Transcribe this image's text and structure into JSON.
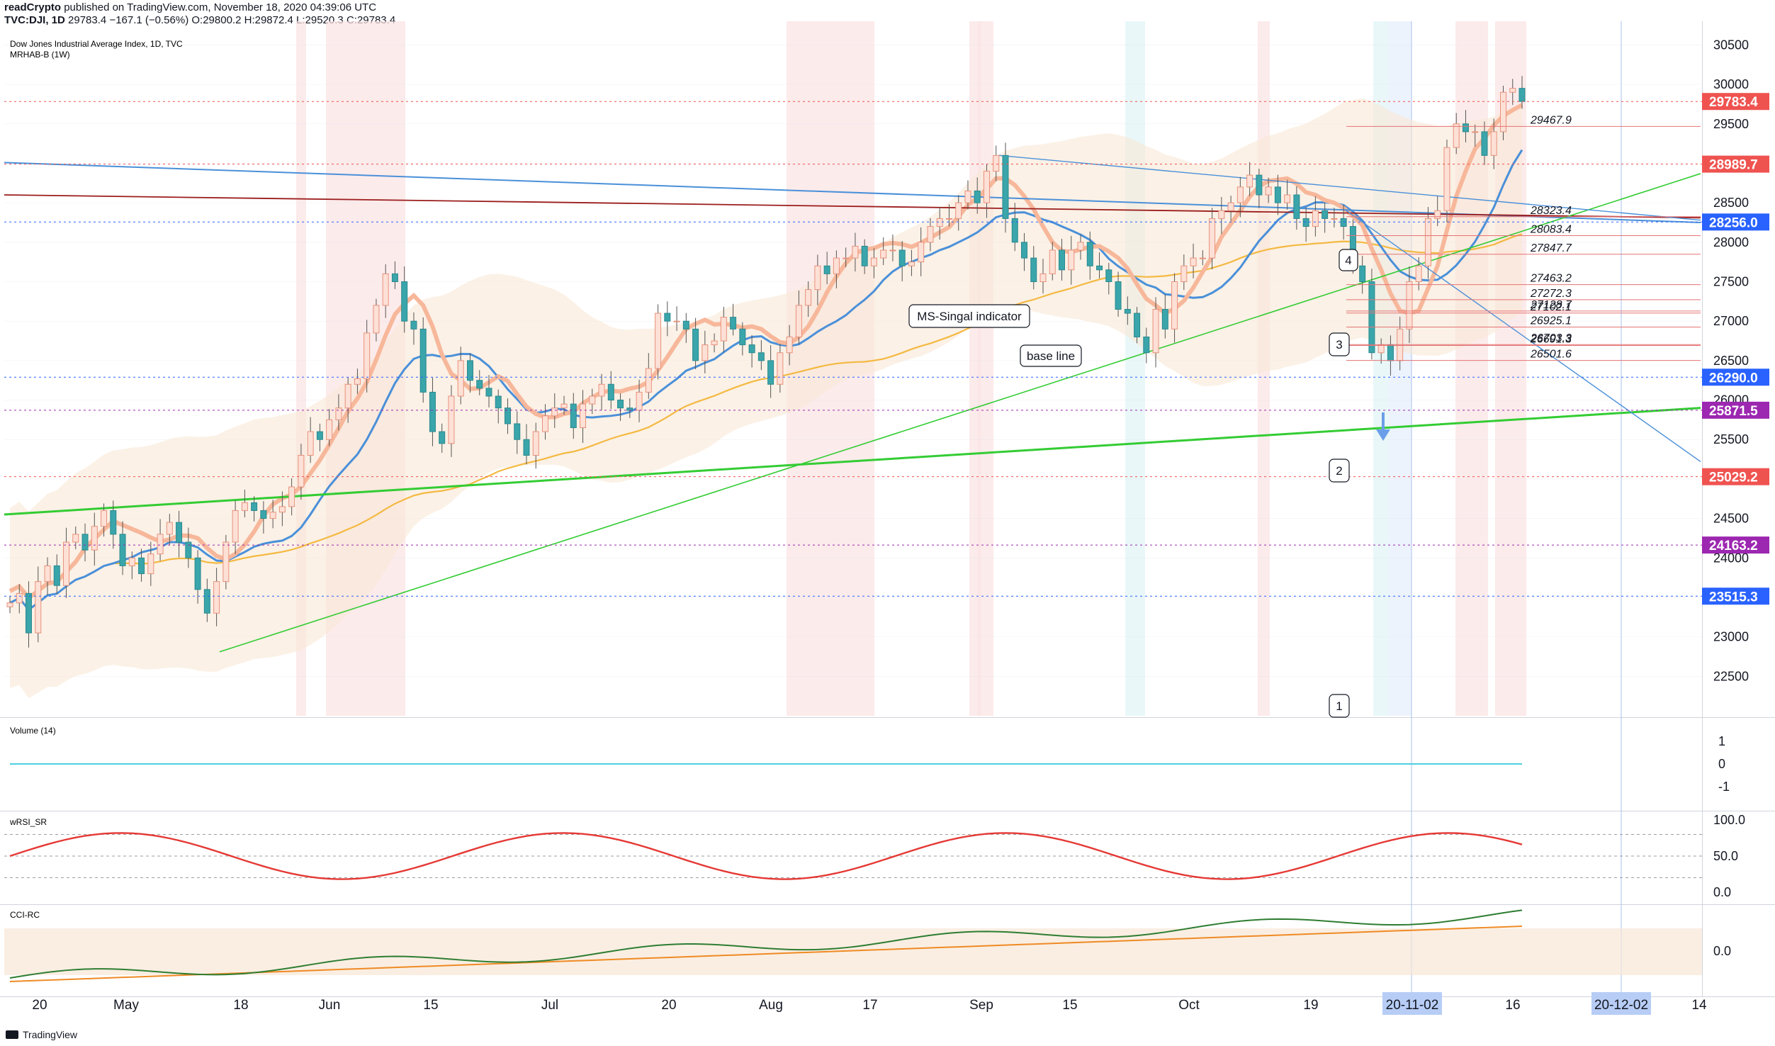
{
  "header": {
    "line1": {
      "author": "readCrypto",
      "published": "published on TradingView.com, November 18, 2020 04:39:06 UTC"
    },
    "line2": {
      "symbol": "TVC:DJI, 1D",
      "last": "29783.4",
      "change": "−167.1 (−0.56%)",
      "o_label": "O:",
      "o": "29800.2",
      "h_label": "H:",
      "h": "29872.4",
      "l_label": "L:",
      "l": "29520.3",
      "c_label": "C:",
      "c": "29783.4"
    }
  },
  "main_pane": {
    "title": "Dow Jones Industrial Average Index, 1D, TVC",
    "indicator": "MRHAB-B (1W)"
  },
  "volume_pane": {
    "title": "Volume (14)"
  },
  "wrsi_pane": {
    "title": "wRSI_SR"
  },
  "cci_pane": {
    "title": "CCI-RC"
  },
  "footer": {
    "brand": "TradingView"
  },
  "colors": {
    "up": "#f4a582",
    "down": "#8fd3d8",
    "blue_line": "#4a90d9",
    "orange_line": "#f4b942",
    "purple_line": "#9c5c8f",
    "green_line": "#33cc33",
    "red_line": "#e53935",
    "grid": "#e0e3eb",
    "cloud": "#f8e7d6",
    "price_red": "#ef5350",
    "price_blue": "#2962ff",
    "price_purple": "#9c27b0"
  },
  "chart_data": [
    {
      "type": "candlestick",
      "title": "Dow Jones Industrial Average Index, 1D, TVC",
      "ylim": [
        22000,
        30800
      ],
      "y_ticks": [
        22500,
        23000,
        23500,
        24000,
        24500,
        25000,
        25500,
        26000,
        26500,
        27000,
        27500,
        28000,
        28500,
        29000,
        29500,
        30000,
        30500
      ],
      "x_ticks": [
        "20",
        "May",
        "18",
        "Jun",
        "15",
        "Jul",
        "20",
        "Aug",
        "17",
        "Sep",
        "15",
        "Oct",
        "19",
        "20-11-02",
        "16",
        "20-12-02",
        "14"
      ],
      "last_price": 29783.4,
      "price_labels": [
        {
          "label": "29783.4",
          "value": 29783.4,
          "style": "red"
        },
        {
          "label": "28989.7",
          "value": 28989.7,
          "style": "red"
        },
        {
          "label": "28256.0",
          "value": 28256.0,
          "style": "blue"
        },
        {
          "label": "26290.0",
          "value": 26290.0,
          "style": "blue"
        },
        {
          "label": "25871.5",
          "value": 25871.5,
          "style": "purple"
        },
        {
          "label": "25029.2",
          "value": 25029.2,
          "style": "red"
        },
        {
          "label": "24163.2",
          "value": 24163.2,
          "style": "purple"
        },
        {
          "label": "23515.3",
          "value": 23515.3,
          "style": "blue"
        }
      ],
      "level_labels": [
        {
          "label": "29467.9",
          "value": 29467.9
        },
        {
          "label": "28323.4",
          "value": 28323.4
        },
        {
          "label": "28083.4",
          "value": 28083.4
        },
        {
          "label": "27847.7",
          "value": 27847.7
        },
        {
          "label": "27463.2",
          "value": 27463.2
        },
        {
          "label": "27272.3",
          "value": 27272.3
        },
        {
          "label": "27128.7",
          "value": 27128.7
        },
        {
          "label": "27102.1",
          "value": 27102.1
        },
        {
          "label": "26925.1",
          "value": 26925.1
        },
        {
          "label": "26703.3",
          "value": 26703.3
        },
        {
          "label": "26691.3",
          "value": 26691.3
        },
        {
          "label": "26501.6",
          "value": 26501.6
        }
      ],
      "annotations": [
        "MS-Singal indicator",
        "base line",
        "1",
        "2",
        "3",
        "4"
      ],
      "closes": [
        23430,
        23550,
        23050,
        23700,
        23900,
        23650,
        24200,
        24300,
        24100,
        24400,
        24600,
        24300,
        23900,
        24000,
        23800,
        24050,
        24300,
        24450,
        24200,
        24000,
        23600,
        23300,
        23700,
        24200,
        24600,
        24700,
        24600,
        24500,
        24580,
        24650,
        24900,
        25300,
        25600,
        25500,
        25750,
        25900,
        26200,
        26270,
        26850,
        27200,
        27600,
        27500,
        27000,
        26900,
        26100,
        25600,
        25450,
        26050,
        26500,
        26250,
        26150,
        26050,
        25900,
        25700,
        25500,
        25300,
        25600,
        25800,
        25900,
        25950,
        25650,
        25950,
        26050,
        26200,
        26000,
        25900,
        25870,
        26100,
        26400,
        27100,
        27000,
        27000,
        26900,
        26500,
        26700,
        26750,
        27050,
        26900,
        26700,
        26600,
        26500,
        26200,
        26600,
        26800,
        27200,
        27400,
        27700,
        27600,
        27800,
        27800,
        27950,
        27700,
        27800,
        27900,
        27900,
        27700,
        27750,
        28000,
        28200,
        28300,
        28300,
        28500,
        28650,
        28500,
        28900,
        29100,
        28300,
        28000,
        27800,
        27500,
        27600,
        27900,
        27650,
        27900,
        28000,
        27700,
        27650,
        27500,
        27150,
        27100,
        26800,
        26600,
        27150,
        26900,
        27500,
        27700,
        27800,
        27800,
        28300,
        28400,
        28500,
        28700,
        28850,
        28600,
        28700,
        28500,
        28600,
        28300,
        28200,
        28400,
        28300,
        28300,
        28200,
        27700,
        27500,
        26600,
        26700,
        26500,
        26900,
        27500,
        27700,
        28300,
        28400,
        29200,
        29500,
        29400,
        29400,
        29100,
        29400,
        29900,
        29950,
        29783.4
      ]
    },
    {
      "type": "line",
      "title": "Volume (14)",
      "ylim": [
        -1.3,
        1.3
      ],
      "y_ticks": [
        1,
        0,
        -1
      ],
      "series": [
        {
          "values": [
            0,
            0
          ]
        }
      ]
    },
    {
      "type": "line",
      "title": "wRSI_SR",
      "ylim": [
        -5,
        105
      ],
      "y_ticks": [
        0.0,
        50.0,
        100.0
      ]
    },
    {
      "type": "line",
      "title": "CCI-RC",
      "y_ticks": [
        0.0
      ]
    }
  ]
}
